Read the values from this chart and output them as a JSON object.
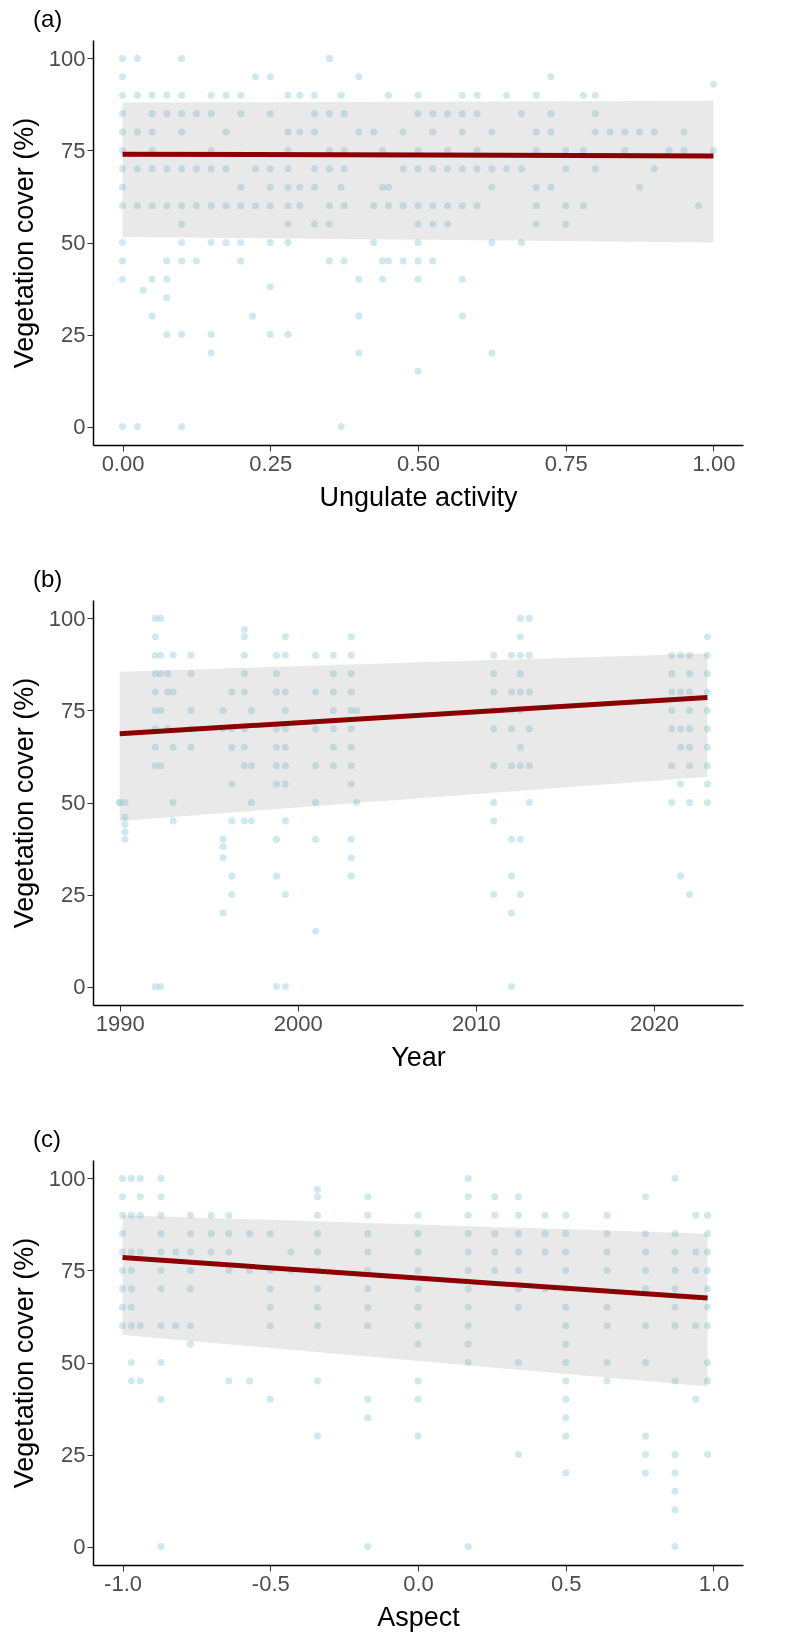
{
  "chart_data": [
    {
      "type": "scatter",
      "title": "(a)",
      "xlabel": "Ungulate activity",
      "ylabel": "Vegetation cover (%)",
      "xlim": [
        -0.05,
        1.05
      ],
      "ylim": [
        -5,
        105
      ],
      "xticks": [
        {
          "value": 0,
          "label": "0.00"
        },
        {
          "value": 0.25,
          "label": "0.25"
        },
        {
          "value": 0.5,
          "label": "0.50"
        },
        {
          "value": 0.75,
          "label": "0.75"
        },
        {
          "value": 1,
          "label": "1.00"
        }
      ],
      "yticks": [
        0,
        25,
        50,
        75,
        100
      ],
      "series": [
        {
          "type": "scatter",
          "marker": "circle",
          "color": "#a9d5e2",
          "x": [
            0,
            0,
            0,
            0,
            0,
            0,
            0,
            0,
            0,
            0,
            0,
            0,
            0,
            0.025,
            0.025,
            0.025,
            0.025,
            0.025,
            0.025,
            0.035,
            0.05,
            0.05,
            0.05,
            0.05,
            0.05,
            0.05,
            0.05,
            0.05,
            0.075,
            0.075,
            0.075,
            0.075,
            0.075,
            0.075,
            0.075,
            0.075,
            0.1,
            0.1,
            0.1,
            0.1,
            0.1,
            0.1,
            0.1,
            0.1,
            0.1,
            0.1,
            0.1,
            0.125,
            0.125,
            0.125,
            0.125,
            0.15,
            0.15,
            0.15,
            0.15,
            0.15,
            0.15,
            0.15,
            0.15,
            0.175,
            0.175,
            0.175,
            0.175,
            0.175,
            0.2,
            0.2,
            0.2,
            0.2,
            0.2,
            0.2,
            0.22,
            0.225,
            0.225,
            0.225,
            0.25,
            0.25,
            0.25,
            0.25,
            0.25,
            0.25,
            0.25,
            0.25,
            0.28,
            0.28,
            0.28,
            0.28,
            0.28,
            0.28,
            0.28,
            0.28,
            0.28,
            0.3,
            0.3,
            0.3,
            0.3,
            0.325,
            0.325,
            0.325,
            0.325,
            0.325,
            0.325,
            0.35,
            0.35,
            0.35,
            0.35,
            0.35,
            0.35,
            0.35,
            0.37,
            0.37,
            0.37,
            0.375,
            0.375,
            0.375,
            0.375,
            0.375,
            0.4,
            0.4,
            0.4,
            0.4,
            0.4,
            0.425,
            0.425,
            0.425,
            0.44,
            0.44,
            0.44,
            0.44,
            0.45,
            0.45,
            0.45,
            0.45,
            0.475,
            0.475,
            0.475,
            0.475,
            0.5,
            0.5,
            0.5,
            0.5,
            0.5,
            0.5,
            0.5,
            0.5,
            0.5,
            0.5,
            0.525,
            0.525,
            0.525,
            0.525,
            0.525,
            0.525,
            0.55,
            0.55,
            0.55,
            0.55,
            0.55,
            0.575,
            0.575,
            0.575,
            0.575,
            0.575,
            0.575,
            0.575,
            0.6,
            0.6,
            0.6,
            0.6,
            0.6,
            0.625,
            0.625,
            0.625,
            0.625,
            0.625,
            0.65,
            0.65,
            0.675,
            0.675,
            0.675,
            0.7,
            0.7,
            0.7,
            0.7,
            0.7,
            0.7,
            0.725,
            0.725,
            0.725,
            0.725,
            0.75,
            0.75,
            0.75,
            0.75,
            0.78,
            0.78,
            0.78,
            0.8,
            0.8,
            0.8,
            0.8,
            0.825,
            0.85,
            0.85,
            0.875,
            0.875,
            0.9,
            0.9,
            0.925,
            0.95,
            0.95,
            0.975,
            1,
            1
          ],
          "values": [
            0,
            40,
            45,
            50,
            60,
            65,
            70,
            75,
            80,
            85,
            90,
            95,
            100,
            0,
            60,
            70,
            80,
            90,
            100,
            37,
            30,
            40,
            60,
            70,
            75,
            80,
            85,
            90,
            25,
            35,
            40,
            45,
            60,
            70,
            85,
            90,
            0,
            25,
            45,
            50,
            55,
            60,
            70,
            80,
            85,
            90,
            100,
            45,
            60,
            70,
            85,
            20,
            25,
            50,
            60,
            70,
            75,
            85,
            90,
            50,
            60,
            70,
            80,
            90,
            45,
            50,
            60,
            65,
            85,
            90,
            30,
            60,
            70,
            95,
            25,
            38,
            50,
            60,
            65,
            70,
            85,
            95,
            25,
            50,
            55,
            60,
            65,
            70,
            75,
            80,
            90,
            60,
            65,
            80,
            90,
            55,
            65,
            70,
            80,
            85,
            90,
            45,
            55,
            60,
            70,
            75,
            85,
            100,
            0,
            65,
            90,
            45,
            60,
            70,
            75,
            85,
            20,
            30,
            40,
            80,
            95,
            50,
            60,
            80,
            40,
            45,
            65,
            75,
            45,
            60,
            65,
            90,
            45,
            60,
            70,
            80,
            15,
            40,
            45,
            50,
            55,
            60,
            70,
            75,
            85,
            90,
            45,
            55,
            60,
            70,
            80,
            85,
            55,
            60,
            70,
            75,
            85,
            30,
            40,
            60,
            70,
            80,
            85,
            90,
            60,
            70,
            75,
            85,
            90,
            20,
            50,
            65,
            70,
            80,
            70,
            90,
            50,
            70,
            85,
            55,
            60,
            65,
            75,
            80,
            90,
            65,
            80,
            85,
            95,
            55,
            60,
            70,
            75,
            60,
            75,
            90,
            70,
            80,
            85,
            90,
            80,
            75,
            80,
            65,
            80,
            70,
            80,
            75,
            75,
            80,
            60,
            75,
            93
          ]
        },
        {
          "type": "line",
          "color": "#8b0000",
          "x": [
            0,
            1
          ],
          "values": [
            74,
            73.5
          ],
          "lower": [
            51.5,
            50
          ],
          "upper": [
            88,
            88.5
          ]
        }
      ]
    },
    {
      "type": "scatter",
      "title": "(b)",
      "xlabel": "Year",
      "ylabel": "Vegetation cover (%)",
      "xlim": [
        1988.5,
        2025
      ],
      "ylim": [
        -5,
        105
      ],
      "xticks": [
        1990,
        2000,
        2010,
        2020
      ],
      "yticks": [
        0,
        25,
        50,
        75,
        100
      ],
      "series": [
        {
          "type": "scatter",
          "marker": "circle",
          "color": "#a9d5e2",
          "x": [
            1990,
            1990,
            1990.3,
            1990.3,
            1990.3,
            1990.3,
            1990.3,
            1992,
            1992,
            1992,
            1992,
            1992,
            1992,
            1992,
            1992,
            1992,
            1992,
            1992.3,
            1992.3,
            1992.3,
            1992.3,
            1992.3,
            1992.3,
            1992.7,
            1992.7,
            1992.7,
            1993,
            1993,
            1993,
            1993,
            1993,
            1994,
            1994,
            1994,
            1994,
            1994,
            1995.8,
            1995.8,
            1995.8,
            1995.8,
            1995.8,
            1995.8,
            1996.3,
            1996.3,
            1996.3,
            1996.3,
            1996.3,
            1996.3,
            1996.3,
            1997,
            1997,
            1997,
            1997,
            1997,
            1997,
            1997,
            1997,
            1997,
            1997.4,
            1997.4,
            1997.4,
            1997.4,
            1998.8,
            1998.8,
            1998.8,
            1998.8,
            1998.8,
            1998.8,
            1998.8,
            1998.8,
            1998.8,
            1998.8,
            1999.3,
            1999.3,
            1999.3,
            1999.3,
            1999.3,
            1999.3,
            1999.3,
            1999.3,
            1999.3,
            1999.3,
            1999.3,
            2001,
            2001,
            2001,
            2001,
            2001,
            2001,
            2001,
            2002,
            2002,
            2002,
            2002,
            2002,
            2002,
            2002,
            2003,
            2003,
            2003,
            2003,
            2003,
            2003,
            2003,
            2003,
            2003,
            2003,
            2003,
            2003,
            2003.3,
            2003.3,
            2011,
            2011,
            2011,
            2011,
            2011,
            2011,
            2011,
            2011,
            2011,
            2012,
            2012,
            2012,
            2012,
            2012,
            2012,
            2012,
            2012,
            2012,
            2012.5,
            2012.5,
            2012.5,
            2012.5,
            2012.5,
            2012.5,
            2012.5,
            2012.5,
            2012.5,
            2012.5,
            2013,
            2013,
            2013,
            2013,
            2013,
            2013,
            2021,
            2021,
            2021,
            2021,
            2021,
            2021,
            2021,
            2021.5,
            2021.5,
            2021.5,
            2021.5,
            2021.5,
            2021.5,
            2022,
            2022,
            2022,
            2022,
            2022,
            2022,
            2022,
            2022,
            2022,
            2023,
            2023,
            2023,
            2023,
            2023,
            2023,
            2023,
            2023,
            2023,
            2023
          ],
          "values": [
            50,
            50,
            40,
            42,
            44,
            46,
            50,
            70,
            75,
            80,
            85,
            90,
            95,
            100,
            0,
            60,
            65,
            0,
            60,
            75,
            85,
            90,
            100,
            80,
            70,
            85,
            45,
            65,
            50,
            90,
            80,
            65,
            70,
            75,
            85,
            90,
            35,
            38,
            40,
            20,
            70,
            75,
            25,
            30,
            45,
            55,
            65,
            70,
            80,
            45,
            60,
            65,
            70,
            80,
            85,
            90,
            95,
            97,
            45,
            50,
            60,
            75,
            0,
            30,
            40,
            55,
            60,
            65,
            70,
            80,
            85,
            90,
            0,
            25,
            45,
            55,
            60,
            65,
            70,
            75,
            80,
            90,
            95,
            15,
            40,
            50,
            60,
            70,
            80,
            90,
            60,
            65,
            70,
            75,
            80,
            85,
            90,
            30,
            35,
            40,
            55,
            60,
            65,
            70,
            75,
            80,
            85,
            90,
            95,
            50,
            75,
            25,
            45,
            50,
            60,
            70,
            75,
            80,
            85,
            90,
            0,
            20,
            30,
            40,
            60,
            70,
            75,
            80,
            90,
            25,
            40,
            60,
            65,
            75,
            80,
            85,
            90,
            95,
            100,
            50,
            60,
            70,
            80,
            90,
            100,
            50,
            60,
            70,
            75,
            80,
            85,
            90,
            30,
            55,
            65,
            70,
            80,
            90,
            25,
            50,
            60,
            65,
            70,
            75,
            80,
            85,
            90,
            50,
            55,
            60,
            65,
            70,
            75,
            80,
            85,
            90,
            95
          ]
        },
        {
          "type": "line",
          "color": "#8b0000",
          "x": [
            1990,
            2023
          ],
          "values": [
            68.7,
            78.5
          ],
          "lower": [
            45,
            57
          ],
          "upper": [
            85.5,
            90.5
          ]
        }
      ]
    },
    {
      "type": "scatter",
      "title": "(c)",
      "xlabel": "Aspect",
      "ylabel": "Vegetation cover (%)",
      "xlim": [
        -1.1,
        1.1
      ],
      "ylim": [
        -5,
        105
      ],
      "xticks": [
        {
          "value": -1,
          "label": "-1.0"
        },
        {
          "value": -0.5,
          "label": "-0.5"
        },
        {
          "value": 0,
          "label": "0.0"
        },
        {
          "value": 0.5,
          "label": "0.5"
        },
        {
          "value": 1,
          "label": "1.0"
        }
      ],
      "yticks": [
        0,
        25,
        50,
        75,
        100
      ],
      "series": [
        {
          "type": "scatter",
          "marker": "circle",
          "color": "#a9d5e2",
          "x": [
            -1,
            -1,
            -1,
            -1,
            -1,
            -1,
            -1,
            -1,
            -1,
            -0.97,
            -0.97,
            -0.97,
            -0.97,
            -0.97,
            -0.97,
            -0.97,
            -0.97,
            -0.97,
            -0.94,
            -0.94,
            -0.94,
            -0.94,
            -0.94,
            -0.94,
            -0.87,
            -0.87,
            -0.87,
            -0.87,
            -0.87,
            -0.87,
            -0.87,
            -0.87,
            -0.87,
            -0.87,
            -0.87,
            -0.82,
            -0.82,
            -0.77,
            -0.77,
            -0.77,
            -0.77,
            -0.77,
            -0.77,
            -0.77,
            -0.7,
            -0.7,
            -0.7,
            -0.64,
            -0.64,
            -0.64,
            -0.64,
            -0.64,
            -0.57,
            -0.57,
            -0.57,
            -0.5,
            -0.5,
            -0.5,
            -0.5,
            -0.5,
            -0.5,
            -0.43,
            -0.43,
            -0.34,
            -0.34,
            -0.34,
            -0.34,
            -0.34,
            -0.34,
            -0.34,
            -0.34,
            -0.34,
            -0.34,
            -0.34,
            -0.17,
            -0.17,
            -0.17,
            -0.17,
            -0.17,
            -0.17,
            -0.17,
            -0.17,
            -0.17,
            -0.17,
            -0.17,
            0,
            0,
            0,
            0,
            0,
            0,
            0,
            0,
            0,
            0,
            0,
            0.17,
            0.17,
            0.17,
            0.17,
            0.17,
            0.17,
            0.17,
            0.17,
            0.17,
            0.17,
            0.17,
            0.17,
            0.26,
            0.26,
            0.26,
            0.26,
            0.26,
            0.34,
            0.34,
            0.34,
            0.34,
            0.34,
            0.34,
            0.34,
            0.34,
            0.34,
            0.43,
            0.43,
            0.43,
            0.43,
            0.5,
            0.5,
            0.5,
            0.5,
            0.5,
            0.5,
            0.5,
            0.5,
            0.5,
            0.5,
            0.5,
            0.5,
            0.5,
            0.5,
            0.64,
            0.64,
            0.64,
            0.64,
            0.64,
            0.64,
            0.64,
            0.64,
            0.77,
            0.77,
            0.77,
            0.77,
            0.77,
            0.77,
            0.77,
            0.77,
            0.77,
            0.77,
            0.87,
            0.87,
            0.87,
            0.87,
            0.87,
            0.87,
            0.87,
            0.87,
            0.87,
            0.87,
            0.87,
            0.87,
            0.87,
            0.94,
            0.94,
            0.94,
            0.94,
            0.94,
            0.98,
            0.98,
            0.98,
            0.98,
            0.98,
            0.98,
            0.98,
            0.98,
            0.98,
            0.98
          ],
          "values": [
            70,
            75,
            80,
            85,
            90,
            95,
            100,
            60,
            65,
            45,
            50,
            60,
            65,
            70,
            75,
            80,
            90,
            100,
            45,
            60,
            80,
            90,
            95,
            100,
            0,
            40,
            50,
            60,
            70,
            75,
            80,
            85,
            90,
            95,
            100,
            60,
            80,
            55,
            60,
            70,
            75,
            80,
            85,
            90,
            80,
            85,
            90,
            45,
            75,
            80,
            85,
            90,
            45,
            75,
            85,
            40,
            60,
            65,
            70,
            75,
            85,
            75,
            80,
            30,
            45,
            60,
            65,
            70,
            75,
            80,
            85,
            90,
            95,
            97,
            0,
            35,
            40,
            60,
            65,
            70,
            75,
            80,
            85,
            90,
            95,
            30,
            40,
            45,
            55,
            60,
            65,
            70,
            75,
            80,
            85,
            90,
            0,
            50,
            55,
            60,
            65,
            70,
            75,
            80,
            85,
            90,
            95,
            100,
            75,
            80,
            85,
            90,
            95,
            25,
            50,
            65,
            70,
            75,
            80,
            85,
            90,
            95,
            70,
            80,
            85,
            90,
            20,
            30,
            35,
            40,
            45,
            50,
            55,
            60,
            65,
            70,
            75,
            80,
            85,
            90,
            45,
            50,
            60,
            65,
            75,
            80,
            85,
            90,
            20,
            25,
            30,
            50,
            60,
            70,
            75,
            80,
            85,
            95,
            0,
            10,
            15,
            20,
            25,
            45,
            60,
            65,
            70,
            75,
            80,
            85,
            100,
            40,
            60,
            75,
            80,
            90,
            25,
            45,
            50,
            60,
            65,
            70,
            75,
            80,
            85,
            90
          ]
        },
        {
          "type": "line",
          "color": "#8b0000",
          "x": [
            -1,
            0.98
          ],
          "values": [
            78.5,
            67.5
          ],
          "lower": [
            57.5,
            43.5
          ],
          "upper": [
            90,
            85
          ]
        }
      ]
    }
  ]
}
